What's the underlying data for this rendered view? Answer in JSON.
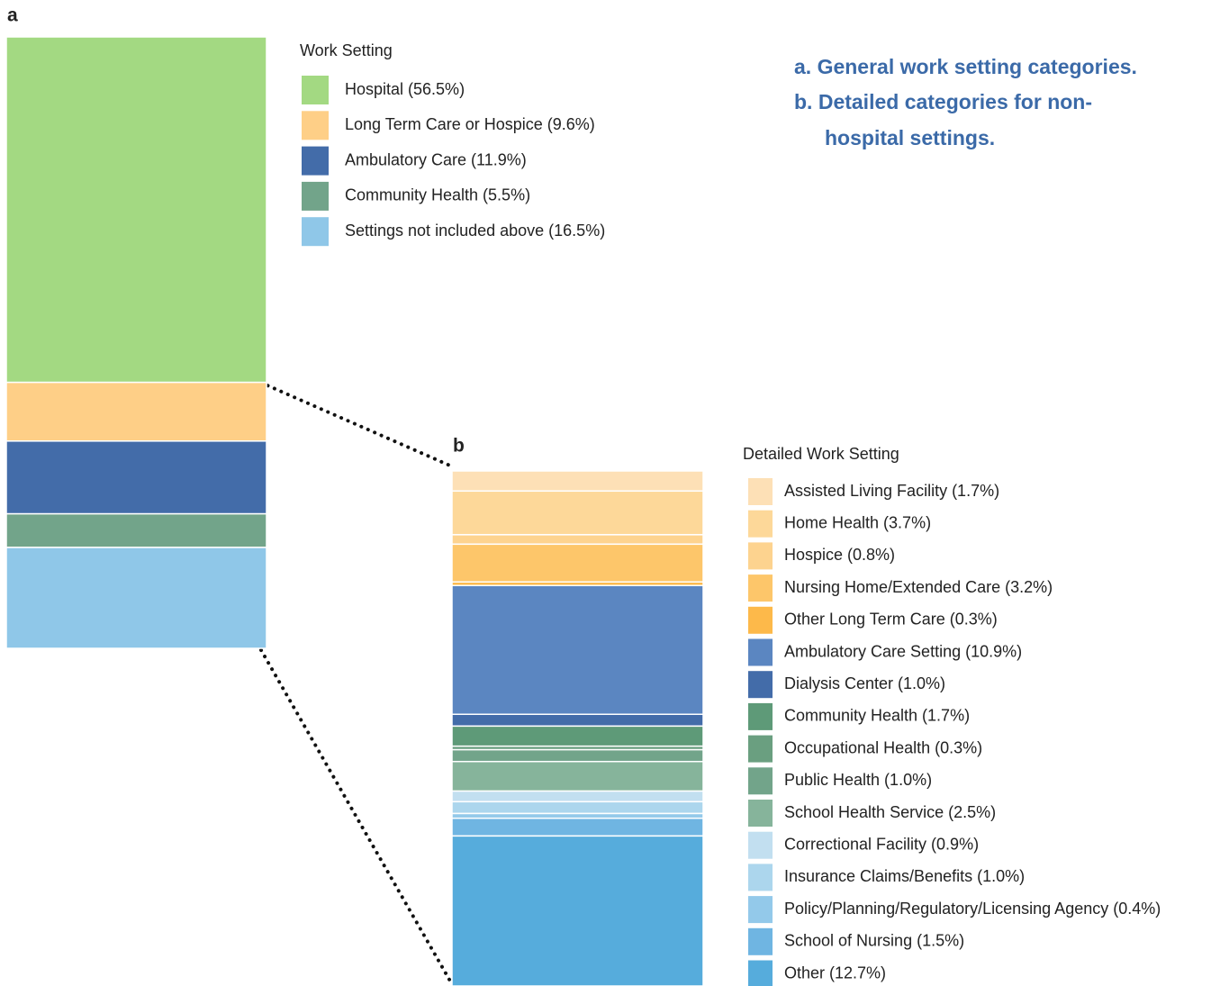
{
  "chart_data": [
    {
      "type": "stacked_bar",
      "panel": "a",
      "legend_title": "Work Setting",
      "series": [
        {
          "name": "Hospital (56.5%)",
          "color": "#a3d982",
          "values": [
            56.5
          ]
        },
        {
          "name": "Long Term Care or Hospice (9.6%)",
          "color": "#fecf87",
          "values": [
            9.6
          ]
        },
        {
          "name": "Ambulatory Care (11.9%)",
          "color": "#436ca9",
          "values": [
            11.9
          ]
        },
        {
          "name": "Community Health (5.5%)",
          "color": "#72a48a",
          "values": [
            5.5
          ]
        },
        {
          "name": "Settings not included above (16.5%)",
          "color": "#8fc7e8",
          "values": [
            16.5
          ]
        }
      ]
    },
    {
      "type": "stacked_bar",
      "panel": "b",
      "legend_title": "Detailed Work Setting",
      "series": [
        {
          "name": "Assisted Living Facility (1.7%)",
          "color": "#fde0b6",
          "values": [
            1.7
          ]
        },
        {
          "name": "Home Health (3.7%)",
          "color": "#fdd899",
          "values": [
            3.7
          ]
        },
        {
          "name": "Hospice (0.8%)",
          "color": "#fdd38f",
          "values": [
            0.8
          ]
        },
        {
          "name": "Nursing Home/Extended Care (3.2%)",
          "color": "#fdc66a",
          "values": [
            3.2
          ]
        },
        {
          "name": "Other Long Term Care (0.3%)",
          "color": "#fdb94a",
          "values": [
            0.3
          ]
        },
        {
          "name": "Ambulatory Care Setting (10.9%)",
          "color": "#5b86c1",
          "values": [
            10.9
          ]
        },
        {
          "name": "Dialysis Center (1.0%)",
          "color": "#436ca9",
          "values": [
            1.0
          ]
        },
        {
          "name": "Community Health (1.7%)",
          "color": "#5e9a78",
          "values": [
            1.7
          ]
        },
        {
          "name": "Occupational Health (0.3%)",
          "color": "#6a9f80",
          "values": [
            0.3
          ]
        },
        {
          "name": "Public Health (1.0%)",
          "color": "#72a48a",
          "values": [
            1.0
          ]
        },
        {
          "name": "School Health Service (2.5%)",
          "color": "#86b49b",
          "values": [
            2.5
          ]
        },
        {
          "name": "Correctional Facility (0.9%)",
          "color": "#c2dff0",
          "values": [
            0.9
          ]
        },
        {
          "name": "Insurance Claims/Benefits (1.0%)",
          "color": "#acd6ed",
          "values": [
            1.0
          ]
        },
        {
          "name": "Policy/Planning/Regulatory/Licensing Agency (0.4%)",
          "color": "#93c9ea",
          "values": [
            0.4
          ]
        },
        {
          "name": "School of Nursing (1.5%)",
          "color": "#6fb5e2",
          "values": [
            1.5
          ]
        },
        {
          "name": "Other (12.7%)",
          "color": "#56acdc",
          "values": [
            12.7
          ]
        }
      ]
    }
  ],
  "annotations": [
    "a. General work setting categories.",
    "b. Detailed categories for non-",
    "hospital settings."
  ]
}
